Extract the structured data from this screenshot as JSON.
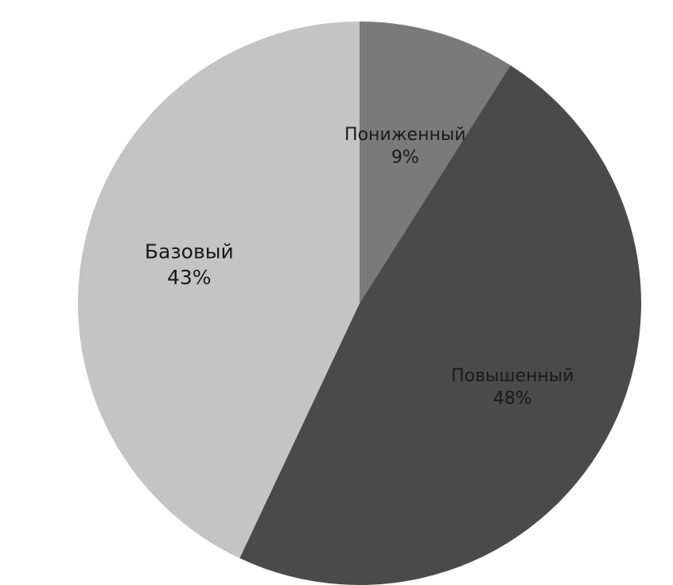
{
  "chart_data": {
    "type": "pie",
    "start_angle_deg": 0,
    "direction": "clockwise",
    "slices": [
      {
        "label": "Пониженный",
        "value": 9,
        "value_label": "9%",
        "color": "#7a7a7a"
      },
      {
        "label": "Повышенный",
        "value": 48,
        "value_label": "48%",
        "color": "#4a4a4a"
      },
      {
        "label": "Базовый",
        "value": 43,
        "value_label": "43%",
        "color": "#c4c4c4"
      }
    ],
    "legend": "none",
    "data_labels": "inside"
  }
}
